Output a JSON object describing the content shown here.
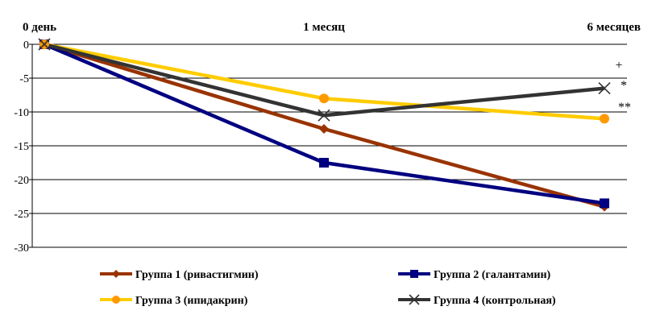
{
  "chart_data": {
    "type": "line",
    "categories": [
      "0 день",
      "1 месяц",
      "6 месяцев"
    ],
    "ylim": [
      -30,
      0
    ],
    "yticks": [
      0,
      -5,
      -10,
      -15,
      -20,
      -25,
      -30
    ],
    "grid": true,
    "legend_position": "bottom",
    "series": [
      {
        "name": "Группа 1 (ривастигмин)",
        "values": [
          0,
          -12.5,
          -24
        ],
        "color": "#993300",
        "marker": "diamond"
      },
      {
        "name": "Группа 2 (галантамин)",
        "values": [
          0,
          -17.5,
          -23.5
        ],
        "color": "#000080",
        "marker": "square"
      },
      {
        "name": "Группа 3 (ипидакрин)",
        "values": [
          0,
          -8,
          -11
        ],
        "color": "#FFCC00",
        "marker": "circle",
        "marker_color": "#FF9900"
      },
      {
        "name": "Группа 4 (контрольная)",
        "values": [
          0,
          -10.5,
          -6.5
        ],
        "color": "#333333",
        "marker": "x"
      }
    ],
    "annotations": [
      "+",
      "*",
      "**"
    ]
  }
}
